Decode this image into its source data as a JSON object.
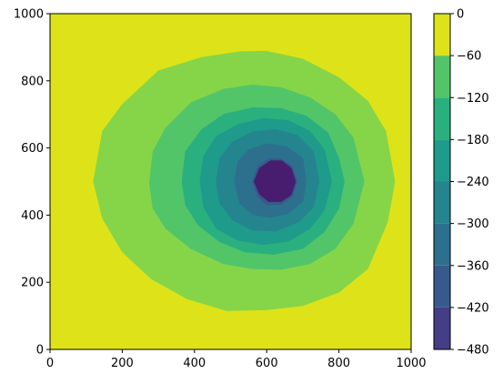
{
  "chart_data": {
    "type": "contour",
    "title": "",
    "xlabel": "",
    "ylabel": "",
    "xlim": [
      0,
      1000
    ],
    "ylim": [
      0,
      1000
    ],
    "x_ticks": [
      0,
      200,
      400,
      600,
      800,
      1000
    ],
    "y_ticks": [
      0,
      200,
      400,
      600,
      800,
      1000
    ],
    "x_tick_labels": [
      "0",
      "200",
      "400",
      "600",
      "800",
      "1000"
    ],
    "y_tick_labels": [
      "0",
      "200",
      "400",
      "600",
      "800",
      "1000"
    ],
    "grid": false,
    "colormap": "viridis",
    "levels": [
      -480,
      -420,
      -360,
      -300,
      -240,
      -180,
      -120,
      -60,
      0
    ],
    "colorbar_tick_labels": [
      "0",
      "−60",
      "−120",
      "−180",
      "−240",
      "−300",
      "−360",
      "−420",
      "−480"
    ],
    "band_colors": [
      "#472c7a",
      "#3b518b",
      "#2c718e",
      "#21908d",
      "#27ad81",
      "#5cc863",
      "#aadc32",
      "#fde725"
    ],
    "band_colors_displayed": [
      "#481c6e",
      "#433e85",
      "#38598c",
      "#2d708e",
      "#25858e",
      "#1e9b8a",
      "#2ab07f",
      "#52c569",
      "#86d549",
      "#dde318"
    ],
    "minimum_center": [
      620,
      490
    ],
    "contours": [
      {
        "level": -60,
        "points": [
          [
            120,
            500
          ],
          [
            145,
            650
          ],
          [
            200,
            730
          ],
          [
            300,
            830
          ],
          [
            420,
            870
          ],
          [
            525,
            887
          ],
          [
            600,
            888
          ],
          [
            700,
            865
          ],
          [
            800,
            810
          ],
          [
            880,
            740
          ],
          [
            930,
            650
          ],
          [
            955,
            500
          ],
          [
            935,
            380
          ],
          [
            880,
            240
          ],
          [
            800,
            170
          ],
          [
            700,
            130
          ],
          [
            600,
            118
          ],
          [
            490,
            115
          ],
          [
            380,
            150
          ],
          [
            280,
            210
          ],
          [
            200,
            290
          ],
          [
            145,
            390
          ]
        ]
      },
      {
        "level": -120,
        "points": [
          [
            275,
            495
          ],
          [
            285,
            590
          ],
          [
            320,
            660
          ],
          [
            390,
            735
          ],
          [
            480,
            775
          ],
          [
            560,
            788
          ],
          [
            640,
            780
          ],
          [
            720,
            750
          ],
          [
            790,
            700
          ],
          [
            840,
            630
          ],
          [
            870,
            500
          ],
          [
            840,
            375
          ],
          [
            790,
            300
          ],
          [
            720,
            255
          ],
          [
            640,
            238
          ],
          [
            560,
            240
          ],
          [
            480,
            255
          ],
          [
            390,
            300
          ],
          [
            320,
            360
          ],
          [
            285,
            420
          ]
        ]
      },
      {
        "level": -180,
        "points": [
          [
            365,
            500
          ],
          [
            375,
            590
          ],
          [
            420,
            655
          ],
          [
            480,
            700
          ],
          [
            560,
            720
          ],
          [
            640,
            718
          ],
          [
            710,
            695
          ],
          [
            770,
            645
          ],
          [
            800,
            570
          ],
          [
            815,
            500
          ],
          [
            800,
            420
          ],
          [
            760,
            350
          ],
          [
            700,
            300
          ],
          [
            620,
            283
          ],
          [
            540,
            290
          ],
          [
            470,
            320
          ],
          [
            410,
            370
          ],
          [
            375,
            430
          ]
        ]
      },
      {
        "level": -240,
        "points": [
          [
            415,
            500
          ],
          [
            425,
            575
          ],
          [
            460,
            635
          ],
          [
            520,
            670
          ],
          [
            590,
            688
          ],
          [
            660,
            682
          ],
          [
            720,
            650
          ],
          [
            760,
            595
          ],
          [
            780,
            500
          ],
          [
            760,
            415
          ],
          [
            720,
            360
          ],
          [
            660,
            322
          ],
          [
            590,
            312
          ],
          [
            520,
            325
          ],
          [
            460,
            360
          ],
          [
            425,
            425
          ]
        ]
      },
      {
        "level": -300,
        "points": [
          [
            460,
            500
          ],
          [
            470,
            570
          ],
          [
            505,
            618
          ],
          [
            560,
            648
          ],
          [
            625,
            655
          ],
          [
            685,
            638
          ],
          [
            730,
            590
          ],
          [
            745,
            500
          ],
          [
            730,
            425
          ],
          [
            690,
            380
          ],
          [
            625,
            352
          ],
          [
            560,
            355
          ],
          [
            505,
            385
          ],
          [
            470,
            435
          ]
        ]
      },
      {
        "level": -360,
        "points": [
          [
            510,
            500
          ],
          [
            520,
            560
          ],
          [
            550,
            595
          ],
          [
            600,
            613
          ],
          [
            655,
            605
          ],
          [
            700,
            570
          ],
          [
            710,
            500
          ],
          [
            700,
            440
          ],
          [
            660,
            405
          ],
          [
            610,
            392
          ],
          [
            560,
            402
          ],
          [
            525,
            435
          ]
        ]
      },
      {
        "level": -420,
        "points": [
          [
            560,
            500
          ],
          [
            575,
            545
          ],
          [
            605,
            568
          ],
          [
            640,
            568
          ],
          [
            672,
            545
          ],
          [
            685,
            500
          ],
          [
            672,
            455
          ],
          [
            640,
            432
          ],
          [
            600,
            430
          ],
          [
            575,
            455
          ]
        ]
      }
    ]
  }
}
